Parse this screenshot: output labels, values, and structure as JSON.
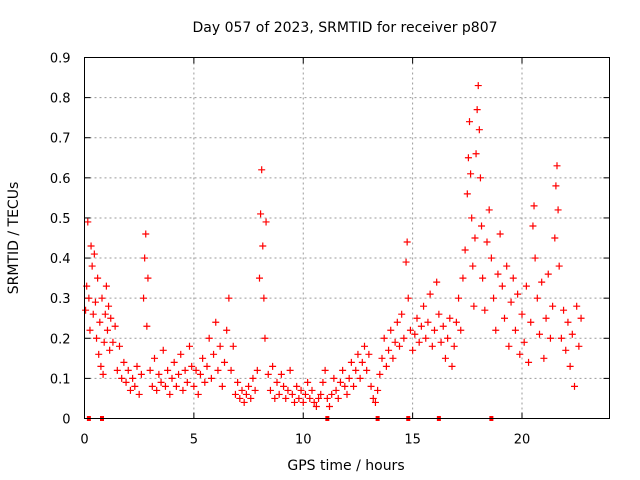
{
  "chart_data": {
    "type": "scatter",
    "title": "Day 057 of 2023, SRMTID for receiver p807",
    "xlabel": "GPS time / hours",
    "ylabel": "SRMTID / TECUs",
    "xlim": [
      0,
      24
    ],
    "ylim": [
      0,
      0.9
    ],
    "xticks": [
      0,
      5,
      10,
      15,
      20
    ],
    "xtick_labels": [
      "0",
      "5",
      "10",
      "15",
      "20"
    ],
    "yticks": [
      0,
      0.1,
      0.2,
      0.3,
      0.4,
      0.5,
      0.6,
      0.7,
      0.8,
      0.9
    ],
    "ytick_labels": [
      "0",
      "0.1",
      "0.2",
      "0.3",
      "0.4",
      "0.5",
      "0.6",
      "0.7",
      "0.8",
      "0.9"
    ],
    "grid": true,
    "marker": "plus",
    "color": "#ff0000",
    "series": [
      {
        "name": "SRMTID",
        "points": [
          [
            0.05,
            0.27
          ],
          [
            0.1,
            0.33
          ],
          [
            0.15,
            0.49
          ],
          [
            0.2,
            0.3
          ],
          [
            0.25,
            0.22
          ],
          [
            0.3,
            0.43
          ],
          [
            0.35,
            0.38
          ],
          [
            0.4,
            0.26
          ],
          [
            0.45,
            0.41
          ],
          [
            0.5,
            0.29
          ],
          [
            0.55,
            0.2
          ],
          [
            0.6,
            0.35
          ],
          [
            0.65,
            0.16
          ],
          [
            0.7,
            0.24
          ],
          [
            0.75,
            0.13
          ],
          [
            0.8,
            0.3
          ],
          [
            0.85,
            0.11
          ],
          [
            0.9,
            0.19
          ],
          [
            0.95,
            0.26
          ],
          [
            1.0,
            0.33
          ],
          [
            1.05,
            0.22
          ],
          [
            1.1,
            0.28
          ],
          [
            1.15,
            0.17
          ],
          [
            1.2,
            0.25
          ],
          [
            1.3,
            0.19
          ],
          [
            1.4,
            0.23
          ],
          [
            1.5,
            0.12
          ],
          [
            1.6,
            0.18
          ],
          [
            1.7,
            0.1
          ],
          [
            1.8,
            0.14
          ],
          [
            1.9,
            0.09
          ],
          [
            2.0,
            0.12
          ],
          [
            2.1,
            0.07
          ],
          [
            2.2,
            0.1
          ],
          [
            2.3,
            0.08
          ],
          [
            2.4,
            0.13
          ],
          [
            2.5,
            0.06
          ],
          [
            2.6,
            0.11
          ],
          [
            2.7,
            0.3
          ],
          [
            2.75,
            0.4
          ],
          [
            2.8,
            0.46
          ],
          [
            2.85,
            0.23
          ],
          [
            2.9,
            0.35
          ],
          [
            3.0,
            0.12
          ],
          [
            3.1,
            0.08
          ],
          [
            3.2,
            0.15
          ],
          [
            3.3,
            0.07
          ],
          [
            3.4,
            0.11
          ],
          [
            3.5,
            0.09
          ],
          [
            3.6,
            0.17
          ],
          [
            3.7,
            0.08
          ],
          [
            3.8,
            0.12
          ],
          [
            3.9,
            0.06
          ],
          [
            4.0,
            0.1
          ],
          [
            4.1,
            0.14
          ],
          [
            4.2,
            0.08
          ],
          [
            4.3,
            0.11
          ],
          [
            4.4,
            0.16
          ],
          [
            4.5,
            0.07
          ],
          [
            4.6,
            0.12
          ],
          [
            4.7,
            0.09
          ],
          [
            4.8,
            0.18
          ],
          [
            4.9,
            0.13
          ],
          [
            5.0,
            0.08
          ],
          [
            5.1,
            0.12
          ],
          [
            5.2,
            0.06
          ],
          [
            5.3,
            0.11
          ],
          [
            5.4,
            0.15
          ],
          [
            5.5,
            0.09
          ],
          [
            5.6,
            0.13
          ],
          [
            5.7,
            0.2
          ],
          [
            5.8,
            0.1
          ],
          [
            5.9,
            0.16
          ],
          [
            6.0,
            0.24
          ],
          [
            6.1,
            0.12
          ],
          [
            6.2,
            0.18
          ],
          [
            6.3,
            0.08
          ],
          [
            6.4,
            0.14
          ],
          [
            6.5,
            0.22
          ],
          [
            6.6,
            0.3
          ],
          [
            6.7,
            0.12
          ],
          [
            6.8,
            0.18
          ],
          [
            6.9,
            0.06
          ],
          [
            7.0,
            0.09
          ],
          [
            7.1,
            0.05
          ],
          [
            7.2,
            0.07
          ],
          [
            7.3,
            0.04
          ],
          [
            7.4,
            0.06
          ],
          [
            7.5,
            0.08
          ],
          [
            7.6,
            0.05
          ],
          [
            7.7,
            0.1
          ],
          [
            7.8,
            0.07
          ],
          [
            7.9,
            0.12
          ],
          [
            8.0,
            0.35
          ],
          [
            8.05,
            0.51
          ],
          [
            8.1,
            0.62
          ],
          [
            8.15,
            0.43
          ],
          [
            8.2,
            0.3
          ],
          [
            8.25,
            0.2
          ],
          [
            8.3,
            0.49
          ],
          [
            8.4,
            0.11
          ],
          [
            8.5,
            0.07
          ],
          [
            8.6,
            0.13
          ],
          [
            8.7,
            0.05
          ],
          [
            8.8,
            0.09
          ],
          [
            8.9,
            0.06
          ],
          [
            9.0,
            0.11
          ],
          [
            9.1,
            0.08
          ],
          [
            9.2,
            0.05
          ],
          [
            9.3,
            0.07
          ],
          [
            9.4,
            0.12
          ],
          [
            9.5,
            0.06
          ],
          [
            9.6,
            0.04
          ],
          [
            9.7,
            0.08
          ],
          [
            9.8,
            0.05
          ],
          [
            9.9,
            0.07
          ],
          [
            10.0,
            0.04
          ],
          [
            10.1,
            0.06
          ],
          [
            10.2,
            0.09
          ],
          [
            10.3,
            0.05
          ],
          [
            10.4,
            0.07
          ],
          [
            10.5,
            0.04
          ],
          [
            10.6,
            0.03
          ],
          [
            10.7,
            0.05
          ],
          [
            10.8,
            0.06
          ],
          [
            10.9,
            0.09
          ],
          [
            11.0,
            0.12
          ],
          [
            11.1,
            0.05
          ],
          [
            11.2,
            0.03
          ],
          [
            11.3,
            0.06
          ],
          [
            11.4,
            0.1
          ],
          [
            11.5,
            0.07
          ],
          [
            11.6,
            0.05
          ],
          [
            11.7,
            0.09
          ],
          [
            11.8,
            0.12
          ],
          [
            11.9,
            0.08
          ],
          [
            12.0,
            0.06
          ],
          [
            12.1,
            0.1
          ],
          [
            12.2,
            0.14
          ],
          [
            12.3,
            0.08
          ],
          [
            12.4,
            0.12
          ],
          [
            12.5,
            0.16
          ],
          [
            12.6,
            0.1
          ],
          [
            12.7,
            0.14
          ],
          [
            12.8,
            0.18
          ],
          [
            12.9,
            0.12
          ],
          [
            13.0,
            0.16
          ],
          [
            13.1,
            0.08
          ],
          [
            13.2,
            0.05
          ],
          [
            13.3,
            0.04
          ],
          [
            13.4,
            0.07
          ],
          [
            13.5,
            0.11
          ],
          [
            13.6,
            0.15
          ],
          [
            13.7,
            0.2
          ],
          [
            13.8,
            0.13
          ],
          [
            13.9,
            0.17
          ],
          [
            14.0,
            0.22
          ],
          [
            14.1,
            0.15
          ],
          [
            14.2,
            0.19
          ],
          [
            14.3,
            0.24
          ],
          [
            14.4,
            0.18
          ],
          [
            14.5,
            0.26
          ],
          [
            14.6,
            0.2
          ],
          [
            14.7,
            0.39
          ],
          [
            14.75,
            0.44
          ],
          [
            14.8,
            0.3
          ],
          [
            14.9,
            0.22
          ],
          [
            15.0,
            0.17
          ],
          [
            15.1,
            0.21
          ],
          [
            15.2,
            0.25
          ],
          [
            15.3,
            0.19
          ],
          [
            15.4,
            0.23
          ],
          [
            15.5,
            0.28
          ],
          [
            15.6,
            0.2
          ],
          [
            15.7,
            0.24
          ],
          [
            15.8,
            0.31
          ],
          [
            15.9,
            0.18
          ],
          [
            16.0,
            0.22
          ],
          [
            16.1,
            0.34
          ],
          [
            16.2,
            0.26
          ],
          [
            16.3,
            0.19
          ],
          [
            16.4,
            0.23
          ],
          [
            16.5,
            0.15
          ],
          [
            16.6,
            0.2
          ],
          [
            16.7,
            0.25
          ],
          [
            16.8,
            0.13
          ],
          [
            16.9,
            0.18
          ],
          [
            17.0,
            0.24
          ],
          [
            17.1,
            0.3
          ],
          [
            17.2,
            0.22
          ],
          [
            17.3,
            0.35
          ],
          [
            17.4,
            0.42
          ],
          [
            17.5,
            0.56
          ],
          [
            17.55,
            0.65
          ],
          [
            17.6,
            0.74
          ],
          [
            17.65,
            0.61
          ],
          [
            17.7,
            0.5
          ],
          [
            17.75,
            0.38
          ],
          [
            17.8,
            0.28
          ],
          [
            17.85,
            0.45
          ],
          [
            17.9,
            0.66
          ],
          [
            17.95,
            0.77
          ],
          [
            18.0,
            0.83
          ],
          [
            18.05,
            0.72
          ],
          [
            18.1,
            0.6
          ],
          [
            18.15,
            0.48
          ],
          [
            18.2,
            0.35
          ],
          [
            18.3,
            0.27
          ],
          [
            18.4,
            0.44
          ],
          [
            18.5,
            0.52
          ],
          [
            18.6,
            0.4
          ],
          [
            18.7,
            0.3
          ],
          [
            18.8,
            0.22
          ],
          [
            18.9,
            0.36
          ],
          [
            19.0,
            0.46
          ],
          [
            19.1,
            0.33
          ],
          [
            19.2,
            0.25
          ],
          [
            19.3,
            0.38
          ],
          [
            19.4,
            0.18
          ],
          [
            19.5,
            0.29
          ],
          [
            19.6,
            0.35
          ],
          [
            19.7,
            0.22
          ],
          [
            19.8,
            0.31
          ],
          [
            19.9,
            0.16
          ],
          [
            20.0,
            0.26
          ],
          [
            20.1,
            0.19
          ],
          [
            20.2,
            0.33
          ],
          [
            20.3,
            0.14
          ],
          [
            20.4,
            0.24
          ],
          [
            20.5,
            0.48
          ],
          [
            20.55,
            0.53
          ],
          [
            20.6,
            0.4
          ],
          [
            20.7,
            0.3
          ],
          [
            20.8,
            0.21
          ],
          [
            20.9,
            0.34
          ],
          [
            21.0,
            0.15
          ],
          [
            21.1,
            0.25
          ],
          [
            21.2,
            0.36
          ],
          [
            21.3,
            0.2
          ],
          [
            21.4,
            0.28
          ],
          [
            21.5,
            0.45
          ],
          [
            21.55,
            0.58
          ],
          [
            21.6,
            0.63
          ],
          [
            21.65,
            0.52
          ],
          [
            21.7,
            0.38
          ],
          [
            21.8,
            0.2
          ],
          [
            21.9,
            0.27
          ],
          [
            22.0,
            0.17
          ],
          [
            22.1,
            0.24
          ],
          [
            22.2,
            0.13
          ],
          [
            22.3,
            0.21
          ],
          [
            22.4,
            0.08
          ],
          [
            22.5,
            0.28
          ],
          [
            22.6,
            0.18
          ],
          [
            22.7,
            0.25
          ]
        ]
      }
    ],
    "baseline_markers_x": [
      0.2,
      0.8,
      11.1,
      13.4,
      14.8,
      16.2,
      18.6
    ]
  }
}
